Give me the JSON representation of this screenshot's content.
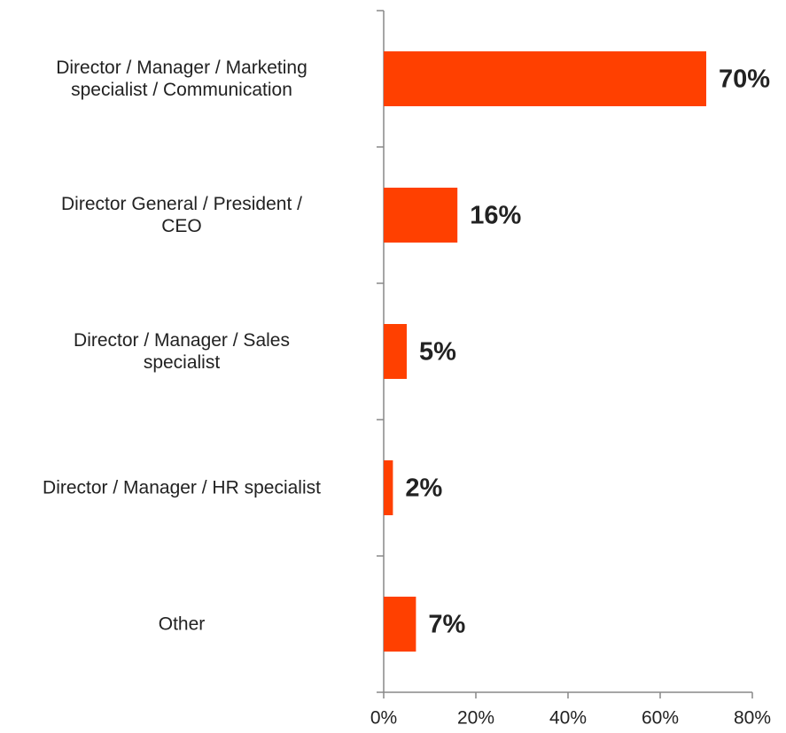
{
  "chart_data": {
    "type": "barh",
    "categories": [
      "Director / Manager / Marketing\nspecialist  / Communication",
      "Director General / President /\nCEO",
      "Director / Manager / Sales\nspecialist",
      "Director / Manager / HR specialist",
      "Other"
    ],
    "values": [
      70,
      16,
      5,
      2,
      7
    ],
    "value_labels": [
      "70%",
      "16%",
      "5%",
      "2%",
      "7%"
    ],
    "color": "#ff4000",
    "xlim": [
      0,
      80
    ],
    "xticks": [
      {
        "value": 0,
        "label": "0%"
      },
      {
        "value": 20,
        "label": "20%"
      },
      {
        "value": 40,
        "label": "40%"
      },
      {
        "value": 60,
        "label": "60%"
      },
      {
        "value": 80,
        "label": "80%"
      }
    ],
    "grid": false
  }
}
